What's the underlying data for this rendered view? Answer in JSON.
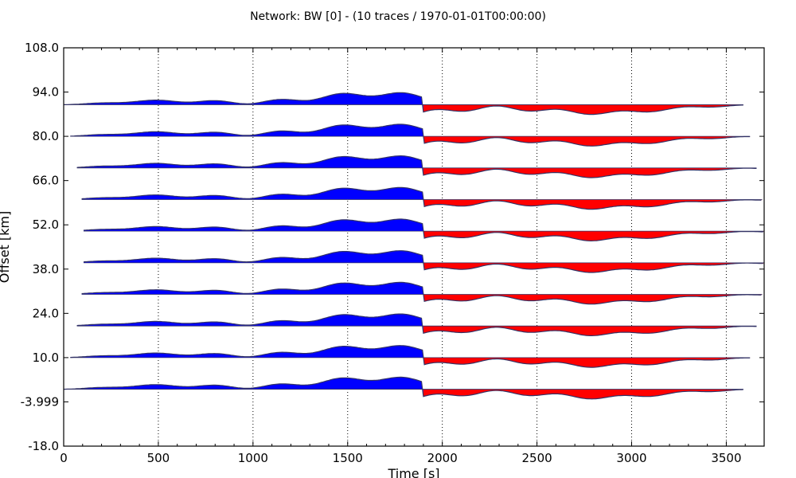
{
  "chart_data": {
    "type": "area",
    "title": "Network: BW [0] - (10 traces / 1970-01-01T00:00:00)",
    "xlabel": "Time [s]",
    "ylabel": "Offset [km]",
    "xlim": [
      0,
      3700
    ],
    "ylim": [
      -18.0,
      108.0
    ],
    "x_ticks": [
      0,
      500,
      1000,
      1500,
      2000,
      2500,
      3000,
      3500
    ],
    "x_tick_labels": [
      "0",
      "500",
      "1000",
      "1500",
      "2000",
      "2500",
      "3000",
      "3500"
    ],
    "y_ticks": [
      108.0,
      94.0,
      80.0,
      66.0,
      52.0,
      38.0,
      24.0,
      10.0,
      -3.999,
      -18.0
    ],
    "y_tick_labels": [
      "108.0",
      "94.0",
      "80.0",
      "66.0",
      "52.0",
      "38.0",
      "24.0",
      "10.0",
      "-3.999",
      "-18.0"
    ],
    "grid": "vertical dotted",
    "positive_fill_color": "#0000ff",
    "negative_fill_color": "#ff0000",
    "trace_line_color": "#333366",
    "traces": [
      {
        "offset": 90.0,
        "t_start": 0,
        "t_end": 3590
      },
      {
        "offset": 80.0,
        "t_start": 35,
        "t_end": 3625
      },
      {
        "offset": 70.0,
        "t_start": 70,
        "t_end": 3660
      },
      {
        "offset": 60.0,
        "t_start": 95,
        "t_end": 3690
      },
      {
        "offset": 50.0,
        "t_start": 105,
        "t_end": 3700
      },
      {
        "offset": 40.0,
        "t_start": 105,
        "t_end": 3700
      },
      {
        "offset": 30.0,
        "t_start": 95,
        "t_end": 3690
      },
      {
        "offset": 20.0,
        "t_start": 70,
        "t_end": 3660
      },
      {
        "offset": 10.0,
        "t_start": 35,
        "t_end": 3625
      },
      {
        "offset": 0.0,
        "t_start": 0,
        "t_end": 3590
      }
    ]
  }
}
